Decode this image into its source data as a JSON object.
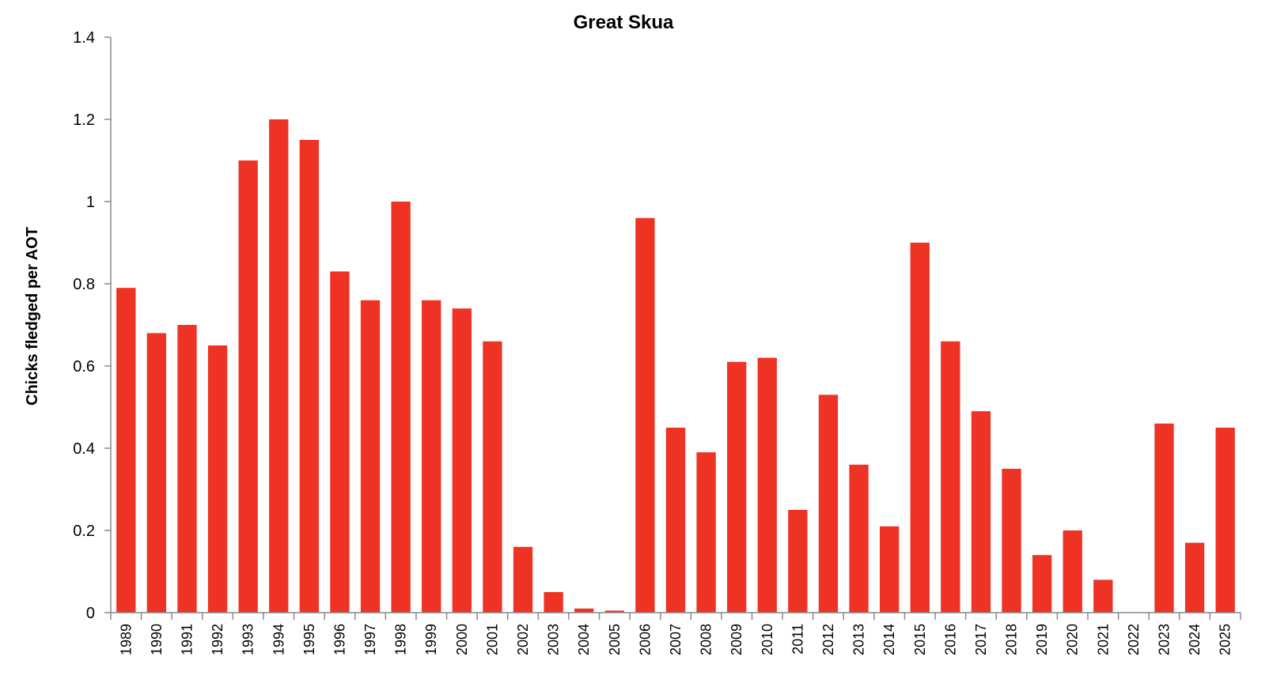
{
  "chart_data": {
    "type": "bar",
    "title": "Great Skua",
    "xlabel": "",
    "ylabel": "Chicks fledged per AOT",
    "ylim": [
      0,
      1.4
    ],
    "yticks": [
      "0",
      "0.2",
      "0.4",
      "0.6",
      "0.8",
      "1",
      "1.2",
      "1.4"
    ],
    "grid": false,
    "legend": "none",
    "bar_color": "#EE3224",
    "categories": [
      "1989",
      "1990",
      "1991",
      "1992",
      "1993",
      "1994",
      "1995",
      "1996",
      "1997",
      "1998",
      "1999",
      "2000",
      "2001",
      "2002",
      "2003",
      "2004",
      "2005",
      "2006",
      "2007",
      "2008",
      "2009",
      "2010",
      "2011",
      "2012",
      "2013",
      "2014",
      "2015",
      "2016",
      "2017",
      "2018",
      "2019",
      "2020",
      "2021",
      "2022",
      "2023",
      "2024",
      "2025"
    ],
    "values": [
      0.79,
      0.68,
      0.7,
      0.65,
      1.1,
      1.2,
      1.15,
      0.83,
      0.76,
      1.0,
      0.76,
      0.74,
      0.66,
      0.16,
      0.05,
      0.01,
      0.005,
      0.96,
      0.45,
      0.39,
      0.61,
      0.62,
      0.25,
      0.53,
      0.36,
      0.21,
      0.9,
      0.66,
      0.49,
      0.35,
      0.14,
      0.2,
      0.08,
      0,
      0.46,
      0.17,
      0.45
    ]
  }
}
